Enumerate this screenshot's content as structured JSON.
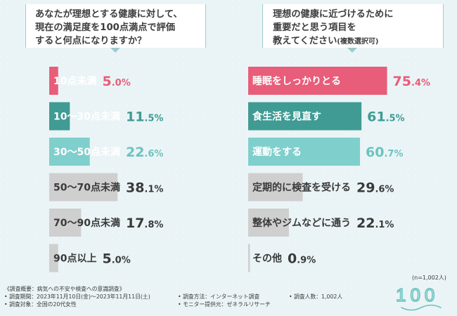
{
  "questions": {
    "q1": {
      "line1": "あなたが理想とする健康に対して、",
      "line2": "現在の満足度を100点満点で評価",
      "line3": "すると何点になりますか？"
    },
    "q2": {
      "line1": "理想の健康に近づけるために",
      "line2": "重要だと思う項目を",
      "line3": "教えてください",
      "line3_small": "(複数選択可)"
    }
  },
  "chart_data": [
    {
      "type": "bar",
      "orientation": "horizontal",
      "title": "あなたが理想とする健康に対して、現在の満足度を100点満点で評価すると何点になりますか？",
      "unit": "%",
      "xlim": [
        0,
        100
      ],
      "categories": [
        "10点未満",
        "10〜30点未満",
        "30〜50点未満",
        "50〜70点未満",
        "70〜90点未満",
        "90点以上"
      ],
      "values": [
        5.0,
        11.5,
        22.6,
        38.1,
        17.8,
        5.0
      ],
      "value_labels": [
        {
          "big": "5",
          "small": ".0%"
        },
        {
          "big": "11",
          "small": ".5%"
        },
        {
          "big": "22",
          "small": ".6%"
        },
        {
          "big": "38",
          "small": ".1%"
        },
        {
          "big": "17",
          "small": ".8%"
        },
        {
          "big": "5",
          "small": ".0%"
        }
      ],
      "colors": [
        "#e85d7a",
        "#3f9b93",
        "#7fcfcc",
        "#cfcfcf",
        "#cfcfcf",
        "#cfcfcf"
      ],
      "label_colors": [
        "#e85d7a",
        "#3f9b93",
        "#6cc3bf",
        "#3a3a3a",
        "#3a3a3a",
        "#3a3a3a"
      ]
    },
    {
      "type": "bar",
      "orientation": "horizontal",
      "title": "理想の健康に近づけるために重要だと思う項目を教えてください(複数選択可)",
      "unit": "%",
      "xlim": [
        0,
        100
      ],
      "categories": [
        "睡眠をしっかりとる",
        "食生活を見直す",
        "運動をする",
        "定期的に検査を受ける",
        "整体やジムなどに通う",
        "その他"
      ],
      "values": [
        75.4,
        61.5,
        60.7,
        29.6,
        22.1,
        0.9
      ],
      "value_labels": [
        {
          "big": "75",
          "small": ".4%"
        },
        {
          "big": "61",
          "small": ".5%"
        },
        {
          "big": "60",
          "small": ".7%"
        },
        {
          "big": "29",
          "small": ".6%"
        },
        {
          "big": "22",
          "small": ".1%"
        },
        {
          "big": "0",
          "small": ".9%"
        }
      ],
      "colors": [
        "#e85d7a",
        "#3f9b93",
        "#7fcfcc",
        "#cfcfcf",
        "#cfcfcf",
        "#cfcfcf"
      ],
      "label_colors": [
        "#e85d7a",
        "#3f9b93",
        "#6cc3bf",
        "#3a3a3a",
        "#3a3a3a",
        "#3a3a3a"
      ]
    }
  ],
  "sample_note": "(n=1,002人)",
  "footer": {
    "overview": "《調査概要：病気への不安や検査への意識調査》",
    "period": "• 調査期間：2023年11月10日(金)〜2023年11月11日(土)",
    "target": "• 調査対象：全国の20代女性",
    "method": "• 調査方法：インターネット調査",
    "provider": "• モニター提供元：ゼネラルリサーチ",
    "count": "• 調査人数：1,002人"
  },
  "logo": {
    "text": "100"
  }
}
